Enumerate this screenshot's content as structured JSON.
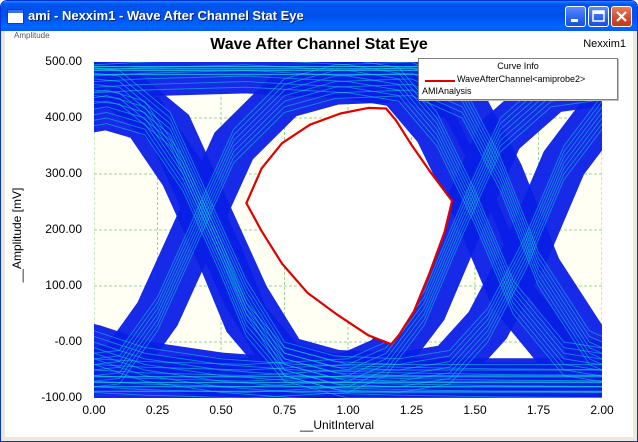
{
  "window": {
    "title": "ami - Nexxim1 - Wave After Channel Stat Eye",
    "controls": [
      "minimize",
      "maximize",
      "close"
    ]
  },
  "cursor_readout": "Amplitude",
  "tool_name": "Nexxim1",
  "colors": {
    "eye_fill": "#0a1fe6",
    "eye_highlight": "#19d2e0",
    "contour": "#e00000",
    "plot_background": "#fffff4",
    "grid": "#9bd49b"
  },
  "legend": {
    "header": "Curve Info",
    "entry": "WaveAfterChannel<amiprobe2>",
    "subtext": "AMIAnalysis"
  },
  "chart_data": {
    "type": "line",
    "title": "Wave After Channel Stat Eye",
    "xlabel": "__UnitInterval",
    "ylabel": "__Amplitude [mV]",
    "xlim": [
      0,
      2
    ],
    "ylim": [
      -100,
      500
    ],
    "x_ticks": [
      "0.00",
      "0.25",
      "0.50",
      "0.75",
      "1.00",
      "1.25",
      "1.50",
      "1.75",
      "2.00"
    ],
    "y_ticks": [
      "500.00",
      "400.00",
      "300.00",
      "200.00",
      "100.00",
      "-0.00",
      "-100.00"
    ],
    "grid": true,
    "legend_position": "top-right",
    "series": [
      {
        "name": "WaveAfterChannel<amiprobe2>",
        "x": [
          0.6,
          0.66,
          0.74,
          0.85,
          0.97,
          1.08,
          1.15,
          1.19,
          1.25,
          1.33,
          1.41,
          1.38,
          1.32,
          1.26,
          1.2,
          1.17,
          1.08,
          0.96,
          0.84,
          0.74,
          0.66,
          0.6
        ],
        "y": [
          248,
          310,
          355,
          388,
          408,
          418,
          417,
          395,
          352,
          300,
          252,
          196,
          122,
          55,
          12,
          -4,
          12,
          48,
          88,
          140,
          198,
          248
        ]
      }
    ]
  }
}
